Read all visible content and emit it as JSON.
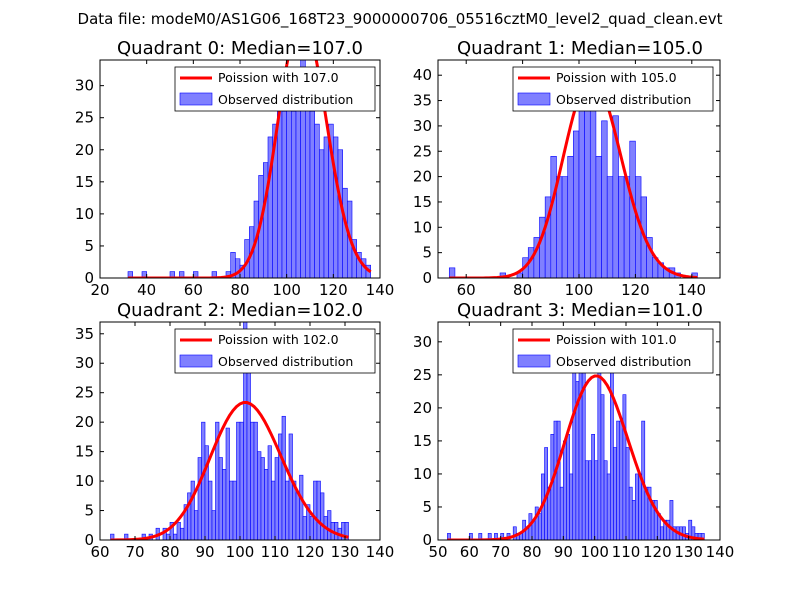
{
  "suptitle": "Data file: modeM0/AS1G06_168T23_9000000706_05516cztM0_level2_quad_clean.evt",
  "chart_data": [
    {
      "type": "bar",
      "title": "Quadrant 0: Median=107.0",
      "xlim": [
        20,
        140
      ],
      "ylim": [
        0,
        34
      ],
      "xticks": [
        20,
        40,
        60,
        80,
        100,
        120,
        140
      ],
      "yticks": [
        0,
        5,
        10,
        15,
        20,
        25,
        30
      ],
      "bin_width": 2,
      "bins_x": [
        32,
        38,
        50,
        54,
        60,
        68,
        74,
        76,
        78,
        80,
        82,
        84,
        86,
        88,
        90,
        92,
        94,
        96,
        98,
        100,
        102,
        104,
        106,
        108,
        110,
        112,
        114,
        116,
        118,
        120,
        122,
        124,
        126,
        128,
        130,
        132,
        134
      ],
      "bins_y": [
        1,
        1,
        1,
        1,
        1,
        1,
        1,
        4,
        3,
        2,
        6,
        8,
        12,
        16,
        18,
        22,
        24,
        27,
        26,
        31,
        26,
        32,
        34,
        28,
        26,
        24,
        20,
        22,
        24,
        22,
        20,
        14,
        12,
        6,
        4,
        3,
        2
      ],
      "poisson_mean": 107.0,
      "legend": [
        "Poission with 107.0",
        "Observed distribution"
      ],
      "legend_loc": "upper right"
    },
    {
      "type": "bar",
      "title": "Quadrant 1: Median=105.0",
      "xlim": [
        50,
        150
      ],
      "ylim": [
        0,
        43
      ],
      "xticks": [
        60,
        80,
        100,
        120,
        140
      ],
      "yticks": [
        0,
        5,
        10,
        15,
        20,
        25,
        30,
        35,
        40
      ],
      "bin_width": 2,
      "bins_x": [
        54,
        72,
        78,
        80,
        82,
        84,
        86,
        88,
        90,
        92,
        94,
        96,
        98,
        100,
        102,
        104,
        106,
        108,
        110,
        112,
        114,
        116,
        118,
        120,
        122,
        124,
        126,
        128,
        130,
        132,
        134,
        140
      ],
      "bins_y": [
        2,
        1,
        1,
        4,
        6,
        8,
        12,
        16,
        24,
        20,
        20,
        24,
        29,
        34,
        38,
        36,
        24,
        31,
        20,
        32,
        20,
        20,
        27,
        20,
        16,
        8,
        4,
        3,
        2,
        2,
        1,
        1
      ],
      "poisson_mean": 105.0,
      "legend": [
        "Poission with 105.0",
        "Observed distribution"
      ],
      "legend_loc": "upper right"
    },
    {
      "type": "bar",
      "title": "Quadrant 2: Median=102.0",
      "xlim": [
        60,
        140
      ],
      "ylim": [
        0,
        37
      ],
      "xticks": [
        60,
        70,
        80,
        90,
        100,
        110,
        120,
        130,
        140
      ],
      "yticks": [
        0,
        5,
        10,
        15,
        20,
        25,
        30,
        35
      ],
      "bin_width": 1,
      "bins_x": [
        63,
        67,
        72,
        74,
        76,
        78,
        79,
        80,
        81,
        82,
        83,
        84,
        85,
        86,
        87,
        88,
        89,
        90,
        91,
        92,
        93,
        94,
        95,
        96,
        97,
        98,
        99,
        100,
        101,
        102,
        103,
        104,
        105,
        106,
        107,
        108,
        109,
        110,
        111,
        112,
        113,
        114,
        115,
        116,
        117,
        118,
        119,
        120,
        121,
        122,
        123,
        124,
        125,
        126,
        127,
        128,
        129,
        130
      ],
      "bins_y": [
        1,
        1,
        1,
        1,
        2,
        2,
        1,
        3,
        1,
        3,
        2,
        6,
        8,
        10,
        5,
        14,
        20,
        16,
        10,
        5,
        20,
        14,
        12,
        19,
        10,
        10,
        20,
        20,
        38,
        34,
        20,
        20,
        15,
        14,
        12,
        16,
        10,
        14,
        18,
        21,
        10,
        18,
        10,
        8,
        11,
        4,
        6,
        4,
        10,
        10,
        8,
        4,
        5,
        3,
        3,
        2,
        3,
        3
      ],
      "poisson_mean": 102.0,
      "legend": [
        "Poission with 102.0",
        "Observed distribution"
      ],
      "legend_loc": "upper right"
    },
    {
      "type": "bar",
      "title": "Quadrant 3: Median=101.0",
      "xlim": [
        50,
        140
      ],
      "ylim": [
        0,
        33
      ],
      "xticks": [
        50,
        60,
        70,
        80,
        90,
        100,
        110,
        120,
        130,
        140
      ],
      "yticks": [
        0,
        5,
        10,
        15,
        20,
        25,
        30
      ],
      "bin_width": 1,
      "bins_x": [
        53,
        60,
        63,
        66,
        68,
        70,
        72,
        74,
        75,
        76,
        77,
        78,
        79,
        80,
        81,
        82,
        83,
        84,
        85,
        86,
        87,
        88,
        89,
        90,
        91,
        92,
        93,
        94,
        95,
        96,
        97,
        98,
        99,
        100,
        101,
        102,
        103,
        104,
        105,
        106,
        107,
        108,
        109,
        110,
        111,
        112,
        113,
        114,
        115,
        116,
        117,
        118,
        119,
        120,
        121,
        122,
        123,
        124,
        125,
        126,
        127,
        128,
        129,
        130,
        131,
        132,
        133,
        134
      ],
      "bins_y": [
        1,
        1,
        1,
        1,
        1,
        1,
        1,
        2,
        1,
        1,
        3,
        2,
        4,
        3,
        5,
        4,
        10,
        14,
        8,
        16,
        18,
        18,
        8,
        15,
        16,
        10,
        26,
        24,
        29,
        26,
        12,
        12,
        16,
        12,
        31,
        22,
        12,
        10,
        28,
        14,
        18,
        18,
        22,
        14,
        8,
        6,
        10,
        10,
        18,
        8,
        8,
        6,
        6,
        4,
        2,
        3,
        3,
        6,
        2,
        2,
        2,
        2,
        1,
        3,
        2,
        1,
        1,
        1
      ],
      "poisson_mean": 101.0,
      "legend": [
        "Poission with 101.0",
        "Observed distribution"
      ],
      "legend_loc": "upper right"
    }
  ]
}
